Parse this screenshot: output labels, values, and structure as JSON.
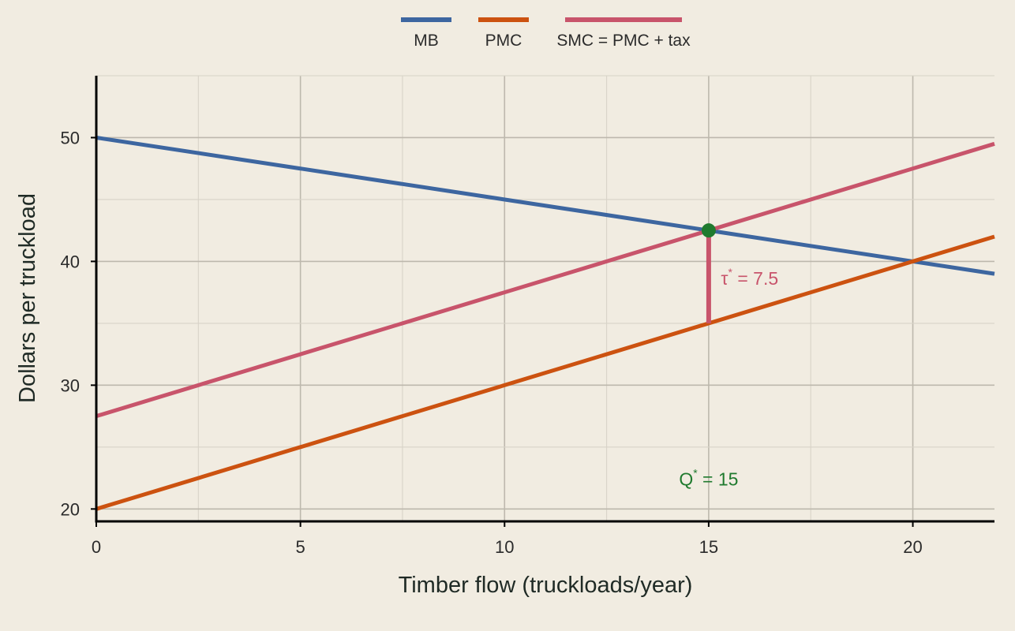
{
  "chart_data": {
    "type": "line",
    "xlabel": "Timber flow (truckloads/year)",
    "ylabel": "Dollars per truckload",
    "xlim": [
      0,
      22
    ],
    "ylim": [
      19,
      55
    ],
    "x_ticks": [
      0,
      5,
      10,
      15,
      20
    ],
    "y_ticks": [
      20,
      30,
      40,
      50
    ],
    "grid": true,
    "legend_position": "top",
    "series": [
      {
        "name": "MB",
        "color": "#3d66a0",
        "x": [
          0,
          22
        ],
        "y": [
          50,
          39
        ]
      },
      {
        "name": "PMC",
        "color": "#cc5210",
        "x": [
          0,
          22
        ],
        "y": [
          20,
          42
        ]
      },
      {
        "name": "SMC = PMC + tax",
        "color": "#c8546b",
        "x": [
          0,
          22
        ],
        "y": [
          27.5,
          49.5
        ]
      }
    ],
    "optimum_point": {
      "x": 15,
      "y": 42.5,
      "color": "#1f7a2e"
    },
    "tax_wedge": {
      "x": 15,
      "y_from": 35,
      "y_to": 42.5,
      "color": "#c8546b"
    },
    "annotations": {
      "tax": {
        "symbol": "τ",
        "superscript": "*",
        "rest": " = 7.5",
        "x": 15.3,
        "y": 38.1,
        "color": "#c8546b"
      },
      "quantity": {
        "symbol": "Q",
        "superscript": "*",
        "rest": " = 15",
        "x": 15,
        "y": 21.9,
        "color": "#1f7a2e"
      }
    }
  }
}
